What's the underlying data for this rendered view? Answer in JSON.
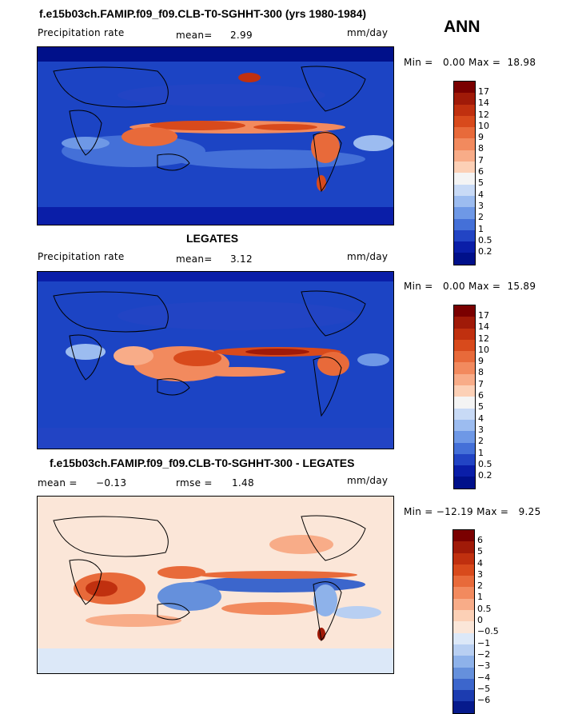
{
  "season": "ANN",
  "panels": [
    {
      "title": "f.e15b03ch.FAMIP.f09_f09.CLB-T0-SGHHT-300 (yrs 1980-1984)",
      "left_label": "Precipitation rate",
      "stat_label": "mean=",
      "stat_value": "2.99",
      "units": "mm/day",
      "minmax": "Min =   0.00 Max =  18.98",
      "colorbar_labels": [
        "17",
        "14",
        "12",
        "10",
        "9",
        "8",
        "7",
        "6",
        "5",
        "4",
        "3",
        "2",
        "1",
        "0.5",
        "0.2"
      ]
    },
    {
      "title": "LEGATES",
      "left_label": "Precipitation rate",
      "stat_label": "mean=",
      "stat_value": "3.12",
      "units": "mm/day",
      "minmax": "Min =   0.00 Max =  15.89",
      "colorbar_labels": [
        "17",
        "14",
        "12",
        "10",
        "9",
        "8",
        "7",
        "6",
        "5",
        "4",
        "3",
        "2",
        "1",
        "0.5",
        "0.2"
      ]
    },
    {
      "title": "f.e15b03ch.FAMIP.f09_f09.CLB-T0-SGHHT-300 - LEGATES",
      "left_label": "mean =",
      "left_value": "−0.13",
      "stat_label": "rmse =",
      "stat_value": "1.48",
      "units": "mm/day",
      "minmax": "Min = −12.19 Max =   9.25",
      "colorbar_labels": [
        "6",
        "5",
        "4",
        "3",
        "2",
        "1",
        "0.5",
        "0",
        "−0.5",
        "−1",
        "−2",
        "−3",
        "−4",
        "−5",
        "−6"
      ]
    }
  ],
  "colors": {
    "precip_scale": [
      "#7a0000",
      "#a01a08",
      "#c0300f",
      "#d84a1c",
      "#e86a3a",
      "#f28a5e",
      "#f8ac88",
      "#fcd0b6",
      "#f4f4f4",
      "#c8daf6",
      "#9cbcf0",
      "#6e98e6",
      "#4470d8",
      "#2244c4",
      "#0a1ea8",
      "#00108a"
    ],
    "diff_scale": [
      "#7a0000",
      "#a01a08",
      "#c0300f",
      "#d84a1c",
      "#e86a3a",
      "#f28a5e",
      "#f8ac88",
      "#fcd0b6",
      "#fbe6d8",
      "#dce8f8",
      "#b8cff2",
      "#8eb2ea",
      "#6590dc",
      "#3c66cc",
      "#1c3cb0",
      "#061a8c"
    ]
  }
}
